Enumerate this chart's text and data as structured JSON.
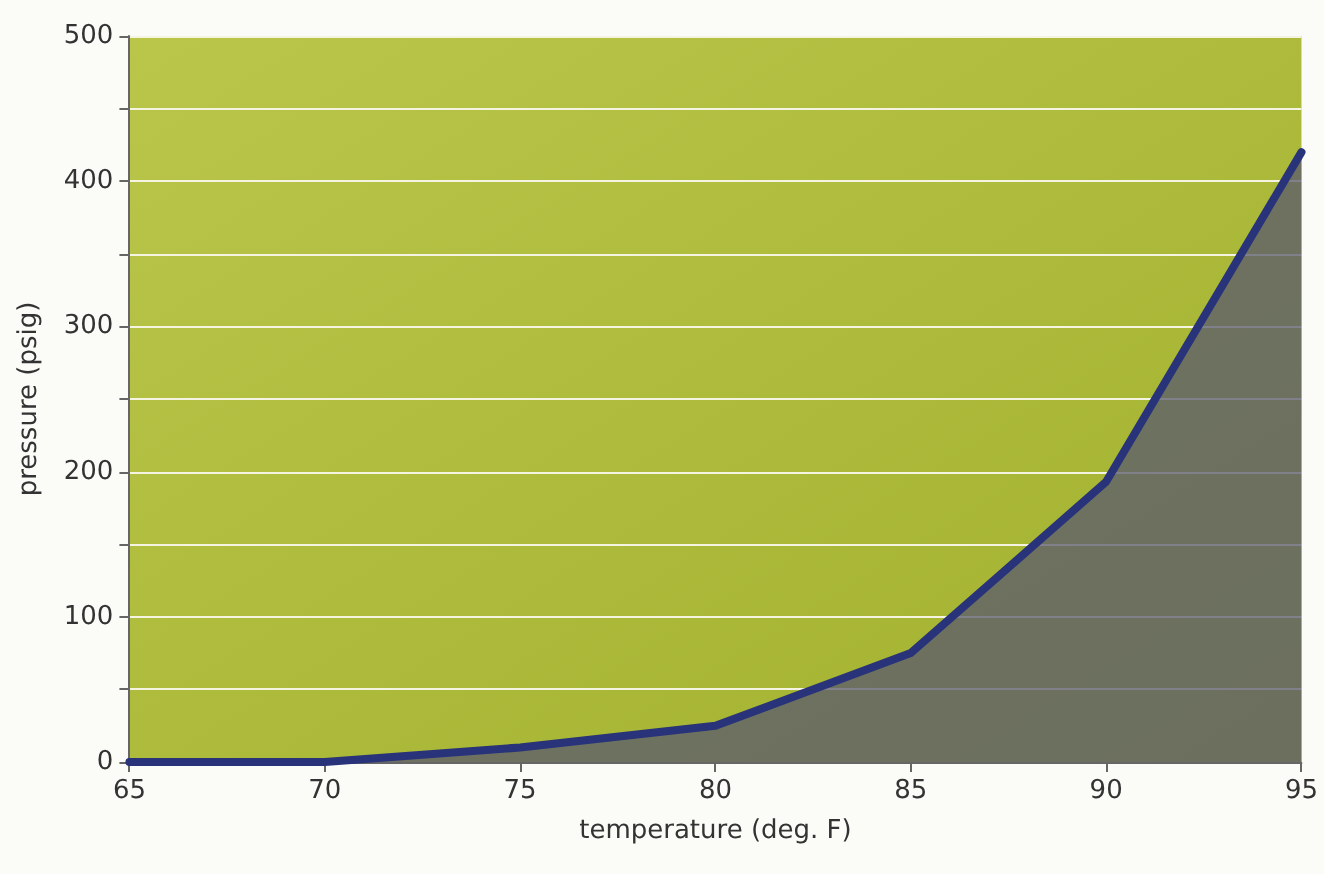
{
  "chart_data": {
    "type": "area",
    "xlabel": "temperature (deg. F)",
    "ylabel": "pressure (psig)",
    "x": [
      65,
      70,
      75,
      80,
      85,
      90,
      95
    ],
    "series": [
      {
        "color": "#28337a",
        "values": [
          0,
          0,
          10,
          25,
          75,
          193,
          420
        ]
      }
    ],
    "xlim": [
      65,
      95
    ],
    "xticks": [
      65,
      70,
      75,
      80,
      85,
      90,
      95
    ],
    "ylim": [
      0,
      500
    ],
    "yticks": [
      0,
      {
        "value": 50,
        "label": null
      },
      100,
      {
        "value": 150,
        "label": null
      },
      200,
      {
        "value": 250,
        "label": null
      },
      300,
      {
        "value": 350,
        "label": null
      },
      400,
      {
        "value": 450,
        "label": null
      },
      500
    ],
    "grid": "y",
    "marker": "none",
    "line_style": "solid"
  }
}
